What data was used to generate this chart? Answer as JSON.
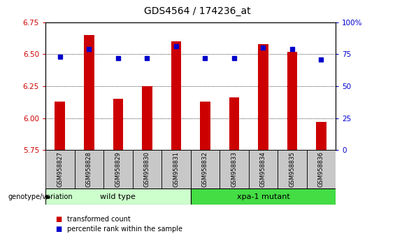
{
  "title": "GDS4564 / 174236_at",
  "samples": [
    "GSM958827",
    "GSM958828",
    "GSM958829",
    "GSM958830",
    "GSM958831",
    "GSM958832",
    "GSM958833",
    "GSM958834",
    "GSM958835",
    "GSM958836"
  ],
  "transformed_counts": [
    6.13,
    6.65,
    6.15,
    6.25,
    6.6,
    6.13,
    6.16,
    6.58,
    6.52,
    5.97
  ],
  "percentile_ranks": [
    73,
    79,
    72,
    72,
    81,
    72,
    72,
    80,
    79,
    71
  ],
  "ylim": [
    5.75,
    6.75
  ],
  "yticks": [
    5.75,
    6.0,
    6.25,
    6.5,
    6.75
  ],
  "right_ylim": [
    0,
    100
  ],
  "right_yticks": [
    0,
    25,
    50,
    75,
    100
  ],
  "bar_color": "#cc0000",
  "dot_color": "#0000cc",
  "bar_width": 0.35,
  "groups": [
    {
      "label": "wild type",
      "start": 0,
      "end": 4,
      "color": "#ccffcc"
    },
    {
      "label": "xpa-1 mutant",
      "start": 5,
      "end": 9,
      "color": "#44dd44"
    }
  ],
  "group_label": "genotype/variation",
  "legend_items": [
    {
      "color": "#cc0000",
      "label": "transformed count"
    },
    {
      "color": "#0000cc",
      "label": "percentile rank within the sample"
    }
  ],
  "left_tick_color": "#cc0000",
  "right_tick_color": "#0000cc",
  "grid_lines": [
    6.0,
    6.25,
    6.5
  ],
  "cell_color": "#c8c8c8"
}
